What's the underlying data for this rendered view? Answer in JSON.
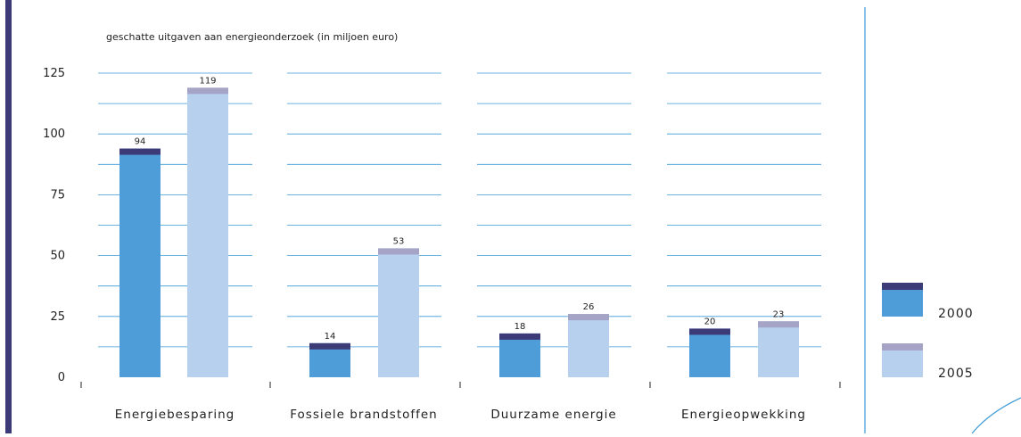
{
  "chart_data": {
    "type": "bar",
    "title": "geschatte uitgaven aan energieonderzoek (in miljoen euro)",
    "categories": [
      "Energiebesparing",
      "Fossiele brandstoffen",
      "Duurzame energie",
      "Energieopwekking"
    ],
    "series": [
      {
        "name": "2000",
        "values": [
          94,
          14,
          18,
          20
        ]
      },
      {
        "name": "2005",
        "values": [
          119,
          53,
          26,
          23
        ]
      }
    ],
    "yticks": [
      "125",
      "100",
      "75",
      "50",
      "25",
      "0"
    ],
    "ylim": [
      0,
      125
    ],
    "grid": true,
    "legend": "right",
    "colors": {
      "s2000_body": "#4f9dd8",
      "s2000_cap": "#3d3a78",
      "s2005_body": "#b6d0ee",
      "s2005_cap": "#a5a3c6",
      "grid": "#3c9ad6",
      "frame": "#3d3a78"
    }
  }
}
